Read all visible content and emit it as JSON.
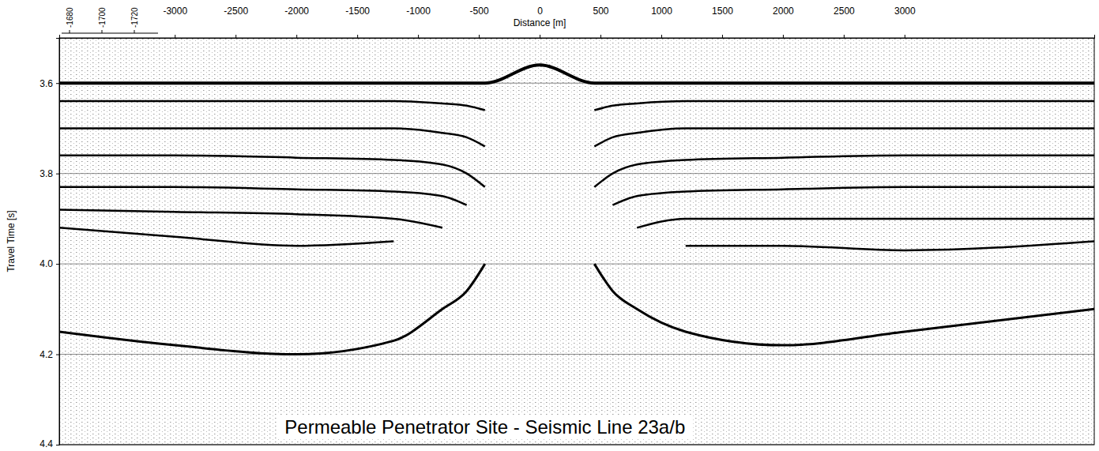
{
  "chart_data": {
    "type": "line",
    "title": "Permeable Penetrator Site - Seismic Line 23a/b",
    "xlabel": "Distance [m]",
    "ylabel": "Travel Time [s]",
    "x": [
      -3950,
      -3000,
      -2000,
      -1200,
      -800,
      -600,
      -450,
      0,
      450,
      600,
      800,
      1200,
      2000,
      3000,
      4560
    ],
    "series": [
      {
        "color": "#000000",
        "values": [
          3.6,
          3.6,
          3.6,
          3.6,
          3.6,
          3.6,
          3.6,
          3.56,
          3.6,
          3.6,
          3.6,
          3.6,
          3.6,
          3.6,
          3.6
        ]
      },
      {
        "color": "#000000",
        "values": [
          3.64,
          3.64,
          3.64,
          3.64,
          3.645,
          3.65,
          3.66,
          null,
          3.66,
          3.65,
          3.645,
          3.64,
          3.64,
          3.64,
          3.64
        ]
      },
      {
        "color": "#000000",
        "values": [
          3.7,
          3.7,
          3.7,
          3.7,
          3.71,
          3.72,
          3.74,
          null,
          3.74,
          3.72,
          3.71,
          3.7,
          3.7,
          3.7,
          3.7
        ]
      },
      {
        "color": "#000000",
        "values": [
          3.76,
          3.76,
          3.765,
          3.77,
          3.78,
          3.8,
          3.83,
          null,
          3.83,
          3.8,
          3.78,
          3.77,
          3.765,
          3.76,
          3.76
        ]
      },
      {
        "color": "#000000",
        "values": [
          3.83,
          3.83,
          3.835,
          3.84,
          3.85,
          3.87,
          null,
          null,
          null,
          3.87,
          3.85,
          3.84,
          3.835,
          3.83,
          3.83
        ]
      },
      {
        "color": "#000000",
        "values": [
          3.88,
          3.885,
          3.89,
          3.9,
          3.92,
          null,
          null,
          null,
          null,
          null,
          3.92,
          3.9,
          3.9,
          3.9,
          3.9
        ]
      },
      {
        "color": "#000000",
        "values": [
          3.92,
          3.94,
          3.96,
          3.95,
          null,
          null,
          null,
          null,
          null,
          null,
          null,
          3.96,
          3.96,
          3.97,
          3.95
        ]
      },
      {
        "color": "#000000",
        "values": [
          4.15,
          4.18,
          4.2,
          4.17,
          4.1,
          4.06,
          4.0,
          null,
          4.0,
          4.06,
          4.1,
          4.15,
          4.18,
          4.15,
          4.1
        ]
      }
    ],
    "xlim": [
      -3950,
      4560
    ],
    "ylim": [
      3.5,
      4.4
    ],
    "xticks": [
      -3000,
      -2500,
      -2000,
      -1500,
      -1000,
      -500,
      0,
      500,
      1000,
      1500,
      2000,
      2500,
      3000
    ],
    "yticks": [
      3.6,
      3.8,
      {
        "value": 4,
        "label": "4.0"
      },
      4.2,
      4.4
    ],
    "grid": true,
    "scale_ticks": [
      -1680,
      -1700,
      -1720
    ]
  }
}
